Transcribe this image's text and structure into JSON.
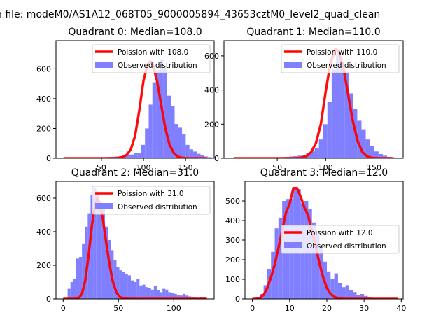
{
  "figure": {
    "suptitle": "n file: modeM0/AS1A12_068T05_9000005894_43653cztM0_level2_quad_clean"
  },
  "colors": {
    "poisson": "#ff0000",
    "observed": "#7f7fff"
  },
  "chart_data": [
    {
      "type": "bar",
      "title": "Quadrant 0: Median=108.0",
      "xlabel": "",
      "ylabel": "",
      "xlim": [
        -4,
        184
      ],
      "ylim": [
        0,
        790
      ],
      "xticks": [
        50,
        100,
        150
      ],
      "yticks": [
        0,
        200,
        400,
        600
      ],
      "legend": {
        "placement": "top-right",
        "entries": [
          "Poission with 108.0",
          "Observed distribution"
        ]
      },
      "series": [
        {
          "name": "Poission with 108.0",
          "kind": "line",
          "x": [
            5,
            25,
            45,
            55,
            65,
            70,
            75,
            80,
            85,
            90,
            95,
            100,
            105,
            108,
            111,
            116,
            121,
            126,
            131,
            136,
            141,
            146,
            151,
            161,
            175
          ],
          "y": [
            0,
            0,
            0,
            0,
            0,
            2,
            8,
            22,
            60,
            150,
            320,
            520,
            630,
            650,
            630,
            520,
            360,
            200,
            90,
            35,
            10,
            3,
            0,
            0,
            0
          ]
        },
        {
          "name": "Observed distribution",
          "kind": "hist",
          "bin_start": 5,
          "bin_width": 4.4,
          "values": [
            2,
            2,
            2,
            2,
            2,
            3,
            3,
            4,
            4,
            5,
            6,
            7,
            9,
            10,
            12,
            14,
            18,
            22,
            25,
            35,
            35,
            90,
            200,
            360,
            510,
            590,
            660,
            620,
            420,
            350,
            230,
            205,
            160,
            90,
            60,
            45,
            30,
            20,
            12,
            8,
            4
          ]
        }
      ]
    },
    {
      "type": "bar",
      "title": "Quadrant 1: Median=110.0",
      "xlabel": "",
      "ylabel": "",
      "xlim": [
        -5,
        180
      ],
      "ylim": [
        0,
        690
      ],
      "xticks": [
        50,
        100,
        150
      ],
      "yticks": [
        0,
        200,
        400,
        600
      ],
      "legend": {
        "placement": "top-right",
        "entries": [
          "Poission with 110.0",
          "Observed distribution"
        ]
      },
      "series": [
        {
          "name": "Poission with 110.0",
          "kind": "line",
          "x": [
            5,
            25,
            45,
            60,
            70,
            75,
            80,
            85,
            90,
            95,
            100,
            105,
            110,
            113,
            118,
            123,
            128,
            133,
            138,
            143,
            148,
            155,
            170
          ],
          "y": [
            0,
            0,
            0,
            0,
            0,
            3,
            12,
            35,
            90,
            200,
            390,
            560,
            640,
            630,
            540,
            380,
            220,
            100,
            35,
            10,
            2,
            0,
            0
          ]
        },
        {
          "name": "Observed distribution",
          "kind": "hist",
          "bin_start": 5,
          "bin_width": 4.4,
          "values": [
            1,
            1,
            1,
            2,
            2,
            2,
            3,
            3,
            4,
            4,
            5,
            6,
            8,
            10,
            12,
            15,
            20,
            30,
            40,
            60,
            110,
            200,
            330,
            520,
            610,
            560,
            500,
            380,
            290,
            220,
            170,
            110,
            70,
            40,
            25,
            15,
            8,
            5,
            3
          ]
        }
      ]
    },
    {
      "type": "bar",
      "title": "Quadrant 2: Median=31.0",
      "xlabel": "",
      "ylabel": "",
      "xlim": [
        -6.5,
        136.5
      ],
      "ylim": [
        0,
        700
      ],
      "xticks": [
        0,
        50,
        100
      ],
      "yticks": [
        0,
        200,
        400,
        600
      ],
      "legend": {
        "placement": "top-right",
        "entries": [
          "Poission with 31.0",
          "Observed distribution"
        ]
      },
      "series": [
        {
          "name": "Poission with 31.0",
          "kind": "line",
          "x": [
            0,
            10,
            14,
            17,
            20,
            23,
            26,
            29,
            31,
            33,
            36,
            39,
            42,
            45,
            48,
            51,
            55,
            60,
            70,
            90,
            130
          ],
          "y": [
            0,
            0,
            3,
            30,
            110,
            260,
            440,
            560,
            600,
            570,
            470,
            330,
            200,
            100,
            40,
            12,
            3,
            0,
            0,
            0,
            0
          ]
        },
        {
          "name": "Observed distribution",
          "kind": "hist",
          "bin_start": 4,
          "bin_width": 2.6,
          "values": [
            60,
            100,
            120,
            240,
            250,
            330,
            430,
            510,
            620,
            660,
            640,
            560,
            540,
            430,
            350,
            290,
            230,
            190,
            170,
            160,
            150,
            140,
            110,
            100,
            120,
            80,
            85,
            70,
            65,
            55,
            75,
            50,
            40,
            60,
            55,
            40,
            35,
            30,
            25,
            20,
            30,
            20,
            15,
            10,
            8,
            5,
            12,
            8
          ]
        }
      ]
    },
    {
      "type": "bar",
      "title": "Quadrant 3: Median=12.0",
      "xlabel": "",
      "ylabel": "",
      "xlim": [
        -2,
        40.5
      ],
      "ylim": [
        0,
        600
      ],
      "xticks": [
        0,
        10,
        20,
        30,
        40
      ],
      "yticks": [
        0,
        100,
        200,
        300,
        400,
        500
      ],
      "legend": {
        "placement": "center-right",
        "entries": [
          "Poission with 12.0",
          "Observed distribution"
        ]
      },
      "series": [
        {
          "name": "Poission with 12.0",
          "kind": "line",
          "x": [
            0,
            1,
            2,
            3,
            4,
            5,
            6,
            7,
            8,
            9,
            10,
            11,
            12,
            13,
            14,
            15,
            16,
            17,
            18,
            19,
            20,
            21,
            22,
            23,
            24,
            25,
            26,
            28,
            30,
            35,
            39
          ],
          "y": [
            0,
            0,
            5,
            20,
            55,
            110,
            175,
            260,
            350,
            440,
            485,
            565,
            565,
            520,
            465,
            425,
            340,
            270,
            180,
            110,
            55,
            25,
            10,
            4,
            1,
            0,
            0,
            0,
            0,
            0,
            0
          ]
        },
        {
          "name": "Observed distribution",
          "kind": "hist",
          "bin_start": 0,
          "bin_width": 1,
          "values": [
            2,
            8,
            25,
            70,
            150,
            240,
            360,
            415,
            500,
            510,
            510,
            560,
            560,
            490,
            500,
            460,
            390,
            330,
            270,
            190,
            140,
            100,
            130,
            80,
            60,
            70,
            45,
            35,
            20,
            25,
            15,
            10,
            5,
            4,
            2,
            1,
            0,
            0,
            0
          ]
        }
      ]
    }
  ]
}
